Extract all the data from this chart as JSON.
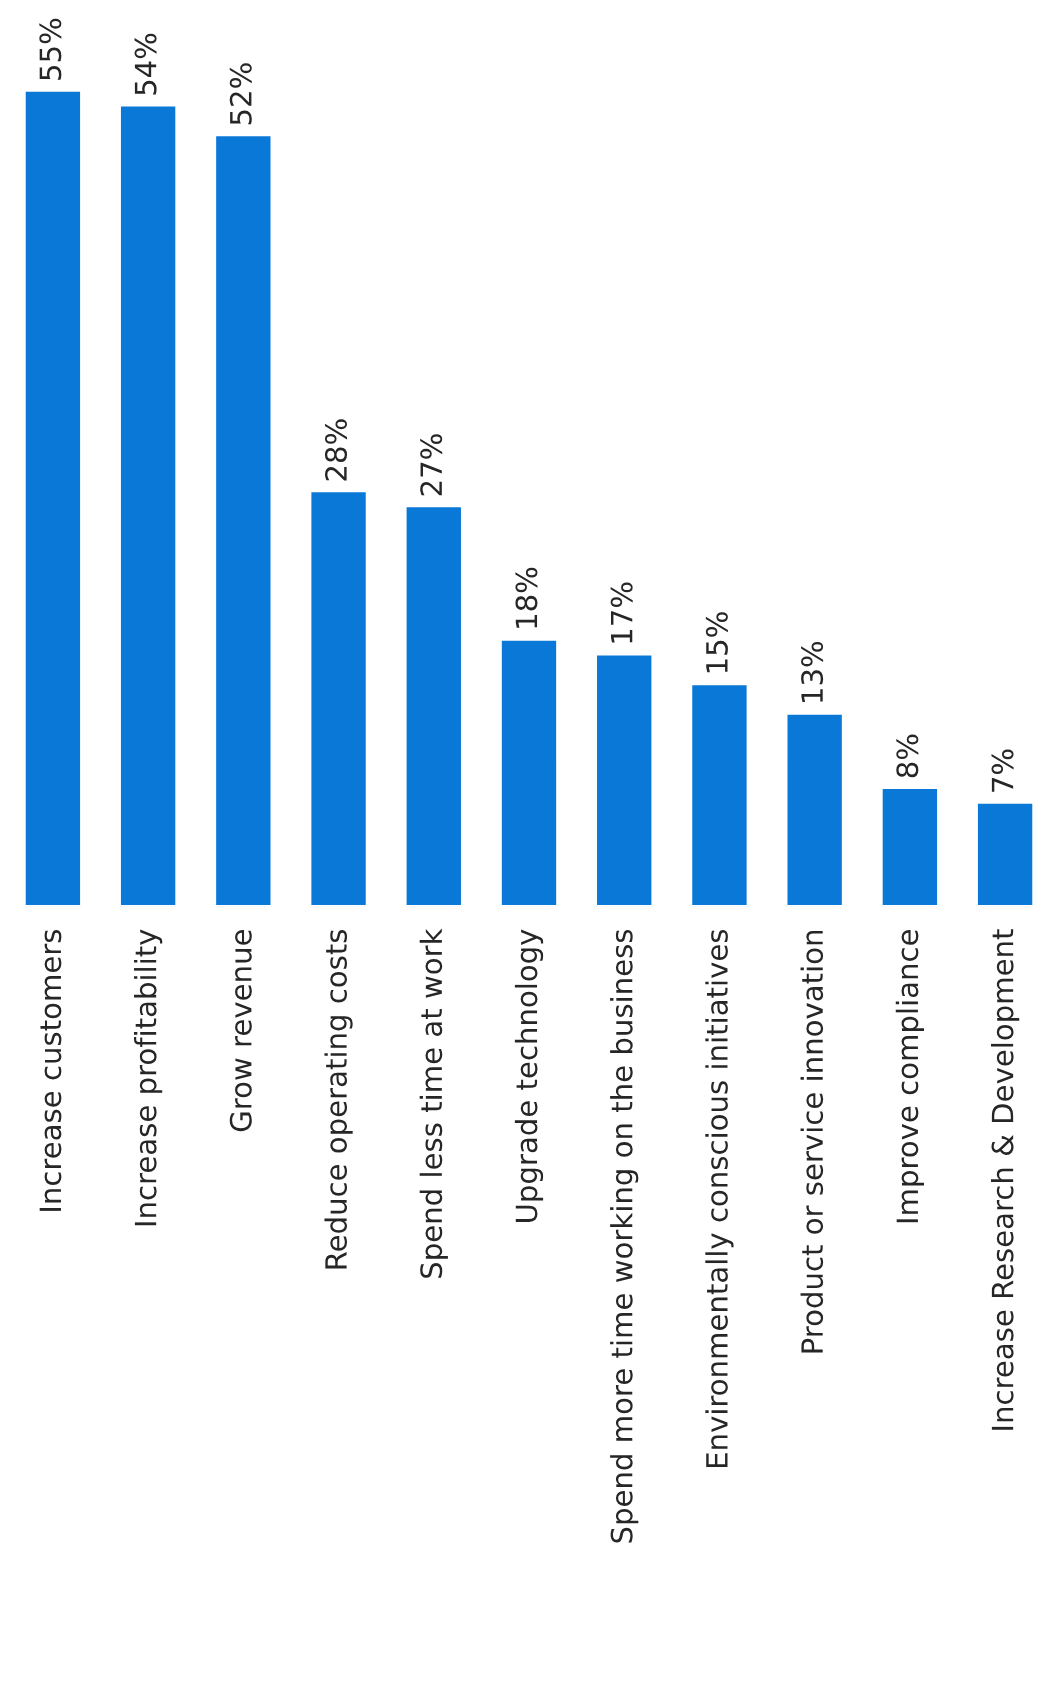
{
  "chart_data": {
    "type": "bar",
    "categories": [
      "Increase customers",
      "Increase profitability",
      "Grow revenue",
      "Reduce operating costs",
      "Spend less time at work",
      "Upgrade technology",
      "Spend more time working on the business",
      "Environmentally conscious initiatives",
      "Product or service innovation",
      "Improve compliance",
      "Increase Research & Development"
    ],
    "values": [
      55,
      54,
      52,
      28,
      27,
      18,
      17,
      15,
      13,
      8,
      7
    ],
    "value_labels": [
      "55%",
      "54%",
      "52%",
      "28%",
      "27%",
      "18%",
      "17%",
      "15%",
      "13%",
      "8%",
      "7%"
    ],
    "color": "#0a78d7",
    "grid": false,
    "legend": false
  }
}
